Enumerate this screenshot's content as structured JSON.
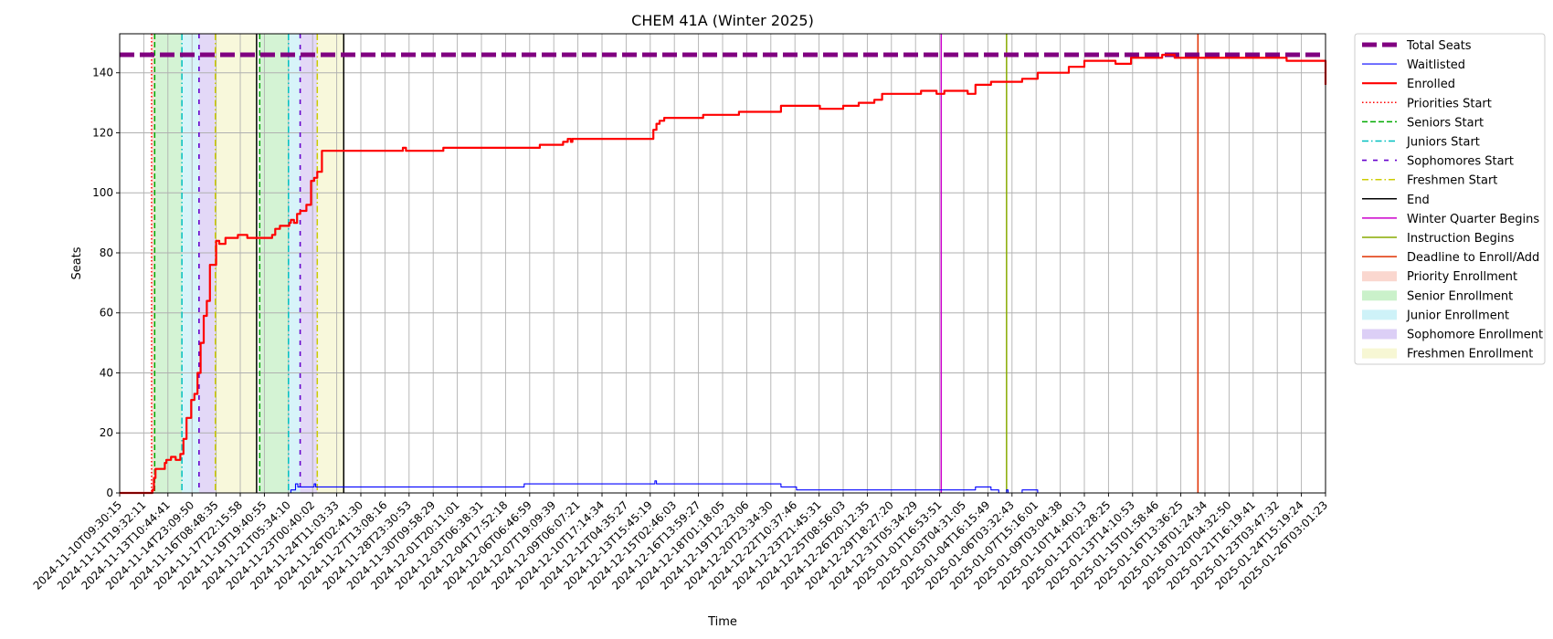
{
  "chart_data": {
    "type": "line",
    "title": "CHEM 41A (Winter 2025)",
    "xlabel": "Time",
    "ylabel": "Seats",
    "ylim": [
      0,
      153
    ],
    "yticks": [
      0,
      20,
      40,
      60,
      80,
      100,
      120,
      140
    ],
    "grid": true,
    "x_axis": {
      "kind": "day_index",
      "start": "2024-11-10T09:30:15",
      "range": [
        0,
        77.5
      ]
    },
    "x_tick_labels": [
      "2024-11-10T09:30:15",
      "2024-11-11T19:32:11",
      "2024-11-13T10:44:41",
      "2024-11-14T23:09:50",
      "2024-11-16T08:48:35",
      "2024-11-17T22:15:58",
      "2024-11-19T19:40:55",
      "2024-11-21T05:34:10",
      "2024-11-23T00:40:02",
      "2024-11-24T11:03:33",
      "2024-11-26T02:41:30",
      "2024-11-27T13:08:16",
      "2024-11-28T23:30:53",
      "2024-11-30T09:58:29",
      "2024-12-01T20:11:01",
      "2024-12-03T06:38:31",
      "2024-12-04T17:52:18",
      "2024-12-06T06:46:59",
      "2024-12-07T19:09:39",
      "2024-12-09T06:07:21",
      "2024-12-10T17:14:34",
      "2024-12-12T04:35:27",
      "2024-12-13T15:45:19",
      "2024-12-15T02:46:03",
      "2024-12-16T13:59:27",
      "2024-12-18T01:18:05",
      "2024-12-19T12:23:06",
      "2024-12-20T23:34:30",
      "2024-12-22T10:37:46",
      "2024-12-23T21:45:31",
      "2024-12-25T08:56:03",
      "2024-12-26T20:12:35",
      "2024-12-29T18:27:20",
      "2024-12-31T05:34:29",
      "2025-01-01T16:53:51",
      "2025-01-03T04:31:05",
      "2025-01-04T16:15:49",
      "2025-01-06T03:32:43",
      "2025-01-07T15:16:01",
      "2025-01-09T03:04:38",
      "2025-01-10T14:40:13",
      "2025-01-12T02:28:25",
      "2025-01-13T14:10:53",
      "2025-01-15T01:58:46",
      "2025-01-16T13:36:25",
      "2025-01-18T01:24:34",
      "2025-01-20T04:32:50",
      "2025-01-21T16:19:41",
      "2025-01-23T03:47:32",
      "2025-01-24T15:19:24",
      "2025-01-26T03:01:23"
    ],
    "series": [
      {
        "name": "Total Seats",
        "color": "#800080",
        "style": "dashed-thick",
        "x": [
          0,
          77.5
        ],
        "y": [
          146,
          146
        ]
      },
      {
        "name": "Waitlisted",
        "color": "#0000ff",
        "style": "solid-thin",
        "step": true,
        "x": [
          0,
          10.9,
          11.0,
          11.3,
          11.45,
          11.6,
          12.5,
          12.6,
          26.0,
          34.4,
          34.5,
          35.2,
          35.3,
          42.5,
          43.5,
          55.0,
          55.7,
          56.0,
          56.5,
          57.0,
          57.1,
          58.0,
          59.0,
          77.5
        ],
        "y": [
          0,
          0,
          1,
          3,
          2,
          2,
          3,
          2,
          3,
          4,
          3,
          3,
          3,
          2,
          1,
          2,
          2,
          1,
          0,
          1,
          0,
          1,
          0,
          0
        ]
      },
      {
        "name": "Enrolled",
        "color": "#ff0000",
        "style": "solid-thick",
        "step": true,
        "x": [
          0,
          2.0,
          2.1,
          2.2,
          2.3,
          2.9,
          3.0,
          3.3,
          3.6,
          3.9,
          4.1,
          4.3,
          4.6,
          4.8,
          5.0,
          5.2,
          5.4,
          5.6,
          5.8,
          6.2,
          6.4,
          6.8,
          7.1,
          7.3,
          7.6,
          8.2,
          9.8,
          10.0,
          10.3,
          10.6,
          10.9,
          11.0,
          11.2,
          11.4,
          11.6,
          12.0,
          12.3,
          12.5,
          12.7,
          13.0,
          18.0,
          18.2,
          18.4,
          20.6,
          20.8,
          27.0,
          27.2,
          28.5,
          28.8,
          29.0,
          29.1,
          29.3,
          30.0,
          32.0,
          32.2,
          34.0,
          34.3,
          34.5,
          34.7,
          35.0,
          36.0,
          37.5,
          38.6,
          39.0,
          39.8,
          41.5,
          42.5,
          44.5,
          45.0,
          46.5,
          47.0,
          47.5,
          48.5,
          49.0,
          49.5,
          50.3,
          51.0,
          51.5,
          52.0,
          52.5,
          53.0,
          54.5,
          55.0,
          55.5,
          56.0,
          57.0,
          58.0,
          59.0,
          61.0,
          62.0,
          63.0,
          64.0,
          65.0,
          66.0,
          67.0,
          67.8,
          69.0,
          71.0,
          73.0,
          75.0,
          77.3,
          77.5
        ],
        "y": [
          0,
          0,
          1,
          5,
          8,
          10,
          11,
          12,
          11,
          13,
          18,
          25,
          31,
          33,
          40,
          50,
          59,
          64,
          76,
          84,
          83,
          85,
          85,
          85,
          86,
          85,
          86,
          88,
          89,
          89,
          90,
          91,
          90,
          93,
          94,
          96,
          104,
          105,
          107,
          114,
          114,
          115,
          114,
          114,
          115,
          116,
          116,
          117,
          118,
          117,
          118,
          118,
          118,
          118,
          118,
          118,
          121,
          123,
          124,
          125,
          125,
          126,
          126,
          126,
          127,
          127,
          129,
          129,
          128,
          129,
          129,
          130,
          131,
          133,
          133,
          133,
          133,
          134,
          134,
          133,
          134,
          133,
          136,
          136,
          137,
          137,
          138,
          140,
          142,
          144,
          144,
          143,
          145,
          145,
          146,
          145,
          145,
          145,
          145,
          144,
          144,
          136
        ]
      }
    ],
    "vertical_lines": [
      {
        "name": "Priorities Start",
        "color": "#ff0000",
        "style": "dotted",
        "x": [
          2.05
        ]
      },
      {
        "name": "Seniors Start",
        "color": "#00aa00",
        "style": "dashed",
        "x": [
          2.25,
          9.0
        ]
      },
      {
        "name": "Juniors Start",
        "color": "#00bfbf",
        "style": "dashdot",
        "x": [
          4.0,
          10.85
        ]
      },
      {
        "name": "Sophomores Start",
        "color": "#6600cc",
        "style": "loosedash",
        "x": [
          5.1,
          11.6
        ]
      },
      {
        "name": "Freshmen Start",
        "color": "#cccc00",
        "style": "dashdot",
        "x": [
          6.15,
          12.7
        ]
      },
      {
        "name": "End",
        "color": "#000000",
        "style": "solid",
        "x": [
          8.8,
          14.4
        ]
      },
      {
        "name": "Winter Quarter Begins",
        "color": "#cc00cc",
        "style": "solid",
        "x": [
          52.8
        ]
      },
      {
        "name": "Instruction Begins",
        "color": "#88aa00",
        "style": "solid",
        "x": [
          57.0
        ]
      },
      {
        "name": "Deadline to Enroll/Add",
        "color": "#e03000",
        "style": "solid",
        "x": [
          69.3
        ]
      }
    ],
    "shaded_regions": [
      {
        "name": "Priority Enrollment",
        "color": "#f5b7a8",
        "ranges": [
          [
            2.05,
            2.25
          ]
        ]
      },
      {
        "name": "Senior Enrollment",
        "color": "#9fe59f",
        "ranges": [
          [
            2.25,
            4.0
          ],
          [
            9.0,
            10.85
          ]
        ]
      },
      {
        "name": "Junior Enrollment",
        "color": "#a6e7f2",
        "ranges": [
          [
            4.0,
            5.1
          ],
          [
            10.85,
            11.6
          ]
        ]
      },
      {
        "name": "Sophomore Enrollment",
        "color": "#c0a8ee",
        "ranges": [
          [
            5.1,
            6.15
          ],
          [
            11.6,
            12.7
          ]
        ]
      },
      {
        "name": "Freshmen Enrollment",
        "color": "#f0f0b0",
        "ranges": [
          [
            6.15,
            8.8
          ],
          [
            12.7,
            14.4
          ]
        ]
      }
    ],
    "legend": {
      "position": "outside-right",
      "entries": [
        {
          "label": "Total Seats",
          "kind": "line",
          "color": "#800080",
          "style": "dashed-thick"
        },
        {
          "label": "Waitlisted",
          "kind": "line",
          "color": "#0000ff",
          "style": "solid-thin"
        },
        {
          "label": "Enrolled",
          "kind": "line",
          "color": "#ff0000",
          "style": "solid-thick"
        },
        {
          "label": "Priorities Start",
          "kind": "line",
          "color": "#ff0000",
          "style": "dotted"
        },
        {
          "label": "Seniors Start",
          "kind": "line",
          "color": "#00aa00",
          "style": "dashed"
        },
        {
          "label": "Juniors Start",
          "kind": "line",
          "color": "#00bfbf",
          "style": "dashdot"
        },
        {
          "label": "Sophomores Start",
          "kind": "line",
          "color": "#6600cc",
          "style": "loosedash"
        },
        {
          "label": "Freshmen Start",
          "kind": "line",
          "color": "#cccc00",
          "style": "dashdot"
        },
        {
          "label": "End",
          "kind": "line",
          "color": "#000000",
          "style": "solid"
        },
        {
          "label": "Winter Quarter Begins",
          "kind": "line",
          "color": "#cc00cc",
          "style": "solid"
        },
        {
          "label": "Instruction Begins",
          "kind": "line",
          "color": "#88aa00",
          "style": "solid"
        },
        {
          "label": "Deadline to Enroll/Add",
          "kind": "line",
          "color": "#e03000",
          "style": "solid"
        },
        {
          "label": "Priority Enrollment",
          "kind": "patch",
          "color": "#f5b7a8"
        },
        {
          "label": "Senior Enrollment",
          "kind": "patch",
          "color": "#9fe59f"
        },
        {
          "label": "Junior Enrollment",
          "kind": "patch",
          "color": "#a6e7f2"
        },
        {
          "label": "Sophomore Enrollment",
          "kind": "patch",
          "color": "#c0a8ee"
        },
        {
          "label": "Freshmen Enrollment",
          "kind": "patch",
          "color": "#f0f0b0"
        }
      ]
    }
  }
}
